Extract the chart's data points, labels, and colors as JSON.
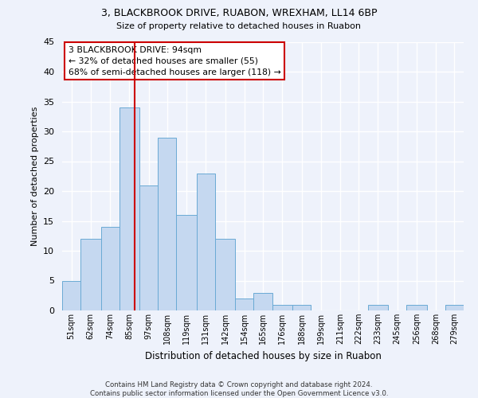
{
  "title1": "3, BLACKBROOK DRIVE, RUABON, WREXHAM, LL14 6BP",
  "title2": "Size of property relative to detached houses in Ruabon",
  "xlabel": "Distribution of detached houses by size in Ruabon",
  "ylabel": "Number of detached properties",
  "bin_labels": [
    "51sqm",
    "62sqm",
    "74sqm",
    "85sqm",
    "97sqm",
    "108sqm",
    "119sqm",
    "131sqm",
    "142sqm",
    "154sqm",
    "165sqm",
    "176sqm",
    "188sqm",
    "199sqm",
    "211sqm",
    "222sqm",
    "233sqm",
    "245sqm",
    "256sqm",
    "268sqm",
    "279sqm"
  ],
  "bin_edges": [
    51,
    62,
    74,
    85,
    97,
    108,
    119,
    131,
    142,
    154,
    165,
    176,
    188,
    199,
    211,
    222,
    233,
    245,
    256,
    268,
    279,
    290
  ],
  "values": [
    5,
    12,
    14,
    34,
    21,
    29,
    16,
    23,
    12,
    2,
    3,
    1,
    1,
    0,
    0,
    0,
    1,
    0,
    1,
    0,
    1
  ],
  "bar_color": "#c5d8f0",
  "bar_edgecolor": "#6aaad4",
  "property_size": 94,
  "vline_color": "#cc0000",
  "annotation_text": "3 BLACKBROOK DRIVE: 94sqm\n← 32% of detached houses are smaller (55)\n68% of semi-detached houses are larger (118) →",
  "annotation_box_color": "white",
  "annotation_box_edgecolor": "#cc0000",
  "ylim": [
    0,
    45
  ],
  "yticks": [
    0,
    5,
    10,
    15,
    20,
    25,
    30,
    35,
    40,
    45
  ],
  "footnote1": "Contains HM Land Registry data © Crown copyright and database right 2024.",
  "footnote2": "Contains public sector information licensed under the Open Government Licence v3.0.",
  "bg_color": "#eef2fb"
}
